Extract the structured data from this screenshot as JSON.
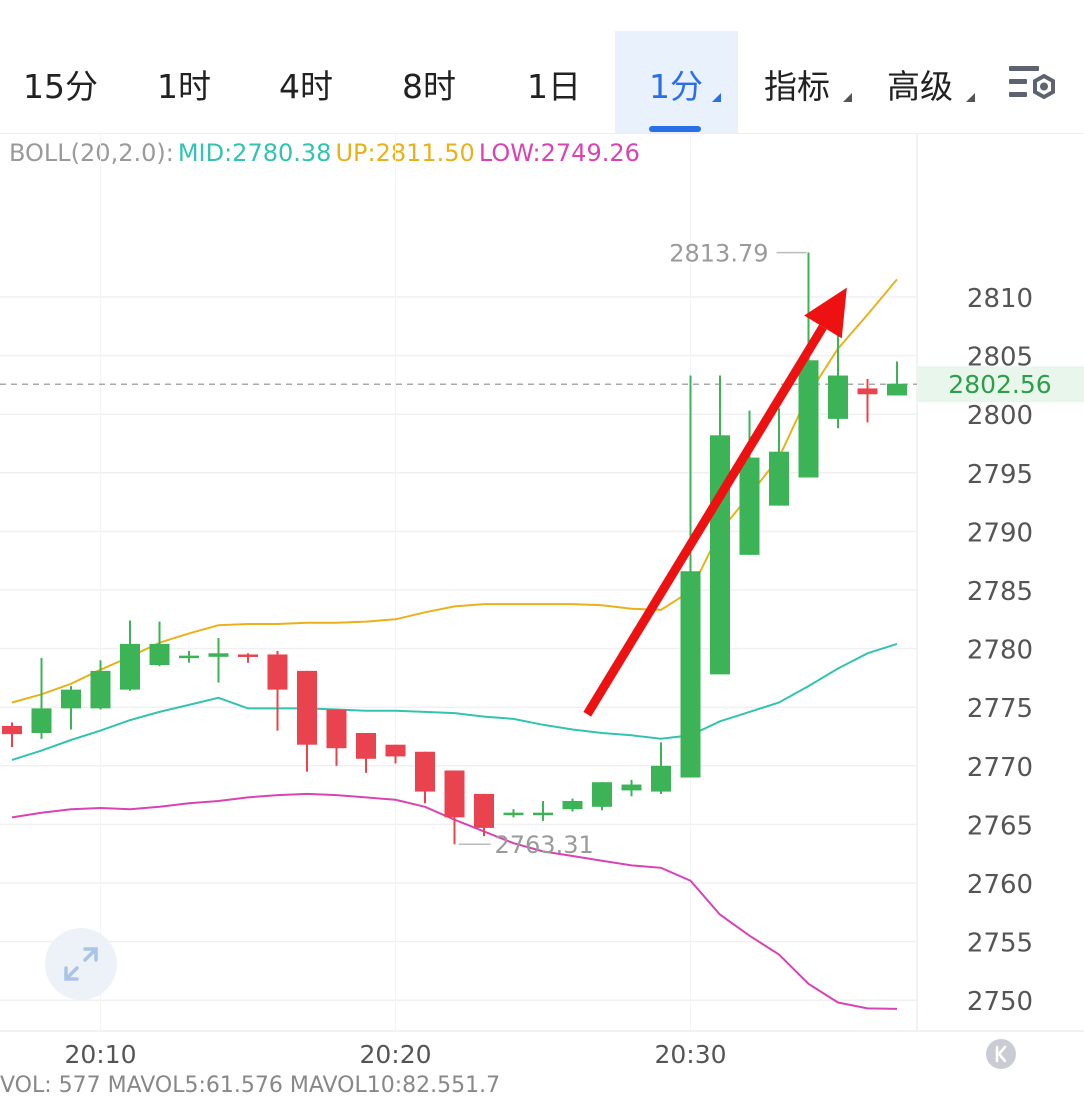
{
  "tabs": [
    {
      "label": "15分",
      "active": false
    },
    {
      "label": "1时",
      "active": false
    },
    {
      "label": "4时",
      "active": false
    },
    {
      "label": "8时",
      "active": false
    },
    {
      "label": "1日",
      "active": false
    },
    {
      "label": "1分",
      "active": true,
      "caret": true
    },
    {
      "label": "指标",
      "active": false,
      "caret": true
    },
    {
      "label": "高级",
      "active": false,
      "caret": true
    }
  ],
  "settings_icon": "chart-settings-icon",
  "boll": {
    "prefix": "BOLL(20,2.0):",
    "mid": "MID:2780.38",
    "up": "UP:2811.50",
    "low": "LOW:2749.26"
  },
  "colors": {
    "up_candle": "#3bb356",
    "down_candle": "#e8434f",
    "mid_line": "#33c3b0",
    "up_line": "#e9b21c",
    "low_line": "#d844b3",
    "arrow": "#ee1111",
    "active_tab": "#2b6fe8",
    "price_tag": "#e8f6ec"
  },
  "chart_data": {
    "type": "candlestick",
    "ylim": [
      2747.5,
      2818
    ],
    "yticks": [
      2810,
      2805,
      2800,
      2795,
      2790,
      2785,
      2780,
      2775,
      2770,
      2765,
      2760,
      2755,
      2750
    ],
    "x_labels": [
      {
        "index": 3,
        "label": "20:10"
      },
      {
        "index": 13,
        "label": "20:20"
      },
      {
        "index": 23,
        "label": "20:30"
      }
    ],
    "candles": [
      {
        "o": 2773.4,
        "h": 2773.7,
        "l": 2771.6,
        "c": 2772.7
      },
      {
        "o": 2772.8,
        "h": 2779.2,
        "l": 2772.3,
        "c": 2774.9
      },
      {
        "o": 2774.9,
        "h": 2776.8,
        "l": 2773.1,
        "c": 2776.5
      },
      {
        "o": 2774.9,
        "h": 2779.0,
        "l": 2774.8,
        "c": 2778.1
      },
      {
        "o": 2776.5,
        "h": 2782.4,
        "l": 2776.4,
        "c": 2780.4
      },
      {
        "o": 2778.6,
        "h": 2782.3,
        "l": 2778.5,
        "c": 2780.4
      },
      {
        "o": 2779.3,
        "h": 2779.8,
        "l": 2778.8,
        "c": 2779.4
      },
      {
        "o": 2779.3,
        "h": 2780.9,
        "l": 2777.1,
        "c": 2779.6
      },
      {
        "o": 2779.5,
        "h": 2779.6,
        "l": 2778.8,
        "c": 2779.3
      },
      {
        "o": 2779.5,
        "h": 2779.8,
        "l": 2773.0,
        "c": 2776.5
      },
      {
        "o": 2778.1,
        "h": 2778.1,
        "l": 2769.5,
        "c": 2771.8
      },
      {
        "o": 2774.8,
        "h": 2774.8,
        "l": 2770.0,
        "c": 2771.5
      },
      {
        "o": 2772.8,
        "h": 2772.8,
        "l": 2769.4,
        "c": 2770.6
      },
      {
        "o": 2771.8,
        "h": 2771.8,
        "l": 2770.2,
        "c": 2770.8
      },
      {
        "o": 2771.2,
        "h": 2771.2,
        "l": 2766.8,
        "c": 2767.8
      },
      {
        "o": 2769.6,
        "h": 2769.6,
        "l": 2763.3,
        "c": 2765.6
      },
      {
        "o": 2767.6,
        "h": 2767.6,
        "l": 2764.0,
        "c": 2764.7
      },
      {
        "o": 2765.9,
        "h": 2766.3,
        "l": 2765.6,
        "c": 2766.0
      },
      {
        "o": 2765.9,
        "h": 2767.0,
        "l": 2765.3,
        "c": 2766.0
      },
      {
        "o": 2766.3,
        "h": 2767.2,
        "l": 2766.1,
        "c": 2767.0
      },
      {
        "o": 2766.5,
        "h": 2768.6,
        "l": 2766.2,
        "c": 2768.6
      },
      {
        "o": 2767.9,
        "h": 2768.8,
        "l": 2767.4,
        "c": 2768.4
      },
      {
        "o": 2767.8,
        "h": 2772.0,
        "l": 2767.6,
        "c": 2770.0
      },
      {
        "o": 2769.0,
        "h": 2803.3,
        "l": 2769.0,
        "c": 2786.6
      },
      {
        "o": 2777.8,
        "h": 2803.3,
        "l": 2777.8,
        "c": 2798.2
      },
      {
        "o": 2788.0,
        "h": 2800.3,
        "l": 2788.0,
        "c": 2796.3
      },
      {
        "o": 2792.2,
        "h": 2800.5,
        "l": 2792.2,
        "c": 2796.8
      },
      {
        "o": 2794.6,
        "h": 2813.8,
        "l": 2794.6,
        "c": 2804.6
      },
      {
        "o": 2799.6,
        "h": 2807.2,
        "l": 2798.8,
        "c": 2803.3
      },
      {
        "o": 2802.2,
        "h": 2803.0,
        "l": 2799.3,
        "c": 2801.7
      },
      {
        "o": 2801.6,
        "h": 2804.5,
        "l": 2801.6,
        "c": 2802.6
      }
    ],
    "boll_mid": [
      2770.5,
      2771.3,
      2772.2,
      2773.0,
      2773.9,
      2774.6,
      2775.2,
      2775.8,
      2774.9,
      2774.9,
      2774.9,
      2774.8,
      2774.7,
      2774.7,
      2774.6,
      2774.5,
      2774.2,
      2774.0,
      2773.5,
      2773.1,
      2772.8,
      2772.6,
      2772.3,
      2772.6,
      2773.8,
      2774.6,
      2775.4,
      2776.8,
      2778.3,
      2779.6,
      2780.4
    ],
    "boll_up": [
      2775.4,
      2776.1,
      2777.0,
      2778.2,
      2779.3,
      2780.5,
      2781.3,
      2782.0,
      2782.1,
      2782.1,
      2782.2,
      2782.2,
      2782.3,
      2782.5,
      2783.1,
      2783.6,
      2783.8,
      2783.8,
      2783.8,
      2783.8,
      2783.7,
      2783.4,
      2783.3,
      2784.9,
      2790.0,
      2793.1,
      2796.3,
      2801.7,
      2805.6,
      2808.5,
      2811.5
    ],
    "boll_low": [
      2765.6,
      2766.0,
      2766.3,
      2766.4,
      2766.3,
      2766.5,
      2766.8,
      2767.0,
      2767.3,
      2767.5,
      2767.6,
      2767.5,
      2767.3,
      2767.1,
      2766.5,
      2765.4,
      2764.4,
      2763.4,
      2762.7,
      2762.3,
      2761.9,
      2761.5,
      2761.3,
      2760.2,
      2757.3,
      2755.5,
      2753.9,
      2751.4,
      2749.8,
      2749.3,
      2749.26
    ],
    "high_label": "2813.79",
    "low_label": "2763.31",
    "current_price": "2802.56",
    "arrow": {
      "from": [
        19.5,
        2774.4
      ],
      "to": [
        28.3,
        2810.8
      ]
    }
  },
  "vol_text": "VOL: 577  MAVOL5:61.576  MAVOL10:82.551.7"
}
